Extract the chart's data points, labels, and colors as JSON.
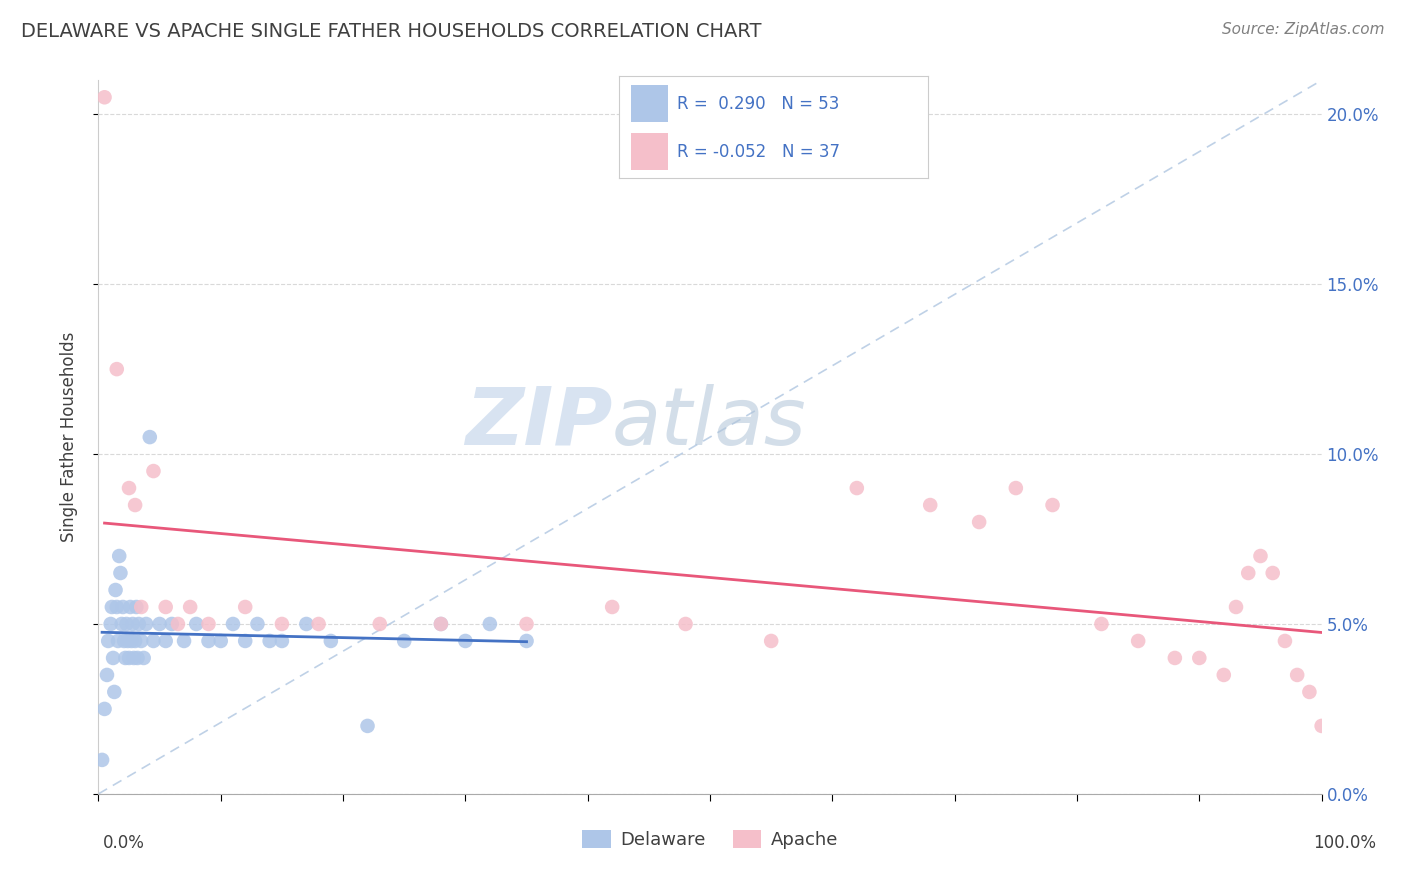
{
  "title": "DELAWARE VS APACHE SINGLE FATHER HOUSEHOLDS CORRELATION CHART",
  "source": "Source: ZipAtlas.com",
  "ylabel": "Single Father Households",
  "xlim": [
    0,
    100
  ],
  "ylim": [
    0,
    21
  ],
  "yticks": [
    0,
    5,
    10,
    15,
    20
  ],
  "ytick_labels": [
    "0.0%",
    "5.0%",
    "10.0%",
    "15.0%",
    "20.0%"
  ],
  "xtick_labels": [
    "0.0%",
    "100.0%"
  ],
  "watermark_zip": "ZIP",
  "watermark_atlas": "atlas",
  "legend_line1": "R =  0.290   N = 53",
  "legend_line2": "R = -0.052   N = 37",
  "color_delaware": "#aec6e8",
  "color_apache": "#f5bfca",
  "line_color_delaware": "#4472c4",
  "line_color_apache": "#e8577a",
  "diag_line_color": "#b8cce4",
  "background_color": "#ffffff",
  "grid_color": "#d9d9d9",
  "title_color": "#404040",
  "legend_text_color": "#4472c4",
  "source_color": "#808080",
  "ylabel_color": "#404040",
  "delaware_x": [
    0.3,
    0.5,
    0.7,
    0.8,
    1.0,
    1.1,
    1.2,
    1.3,
    1.4,
    1.5,
    1.6,
    1.7,
    1.8,
    1.9,
    2.0,
    2.1,
    2.2,
    2.3,
    2.4,
    2.5,
    2.6,
    2.7,
    2.8,
    2.9,
    3.0,
    3.1,
    3.2,
    3.3,
    3.5,
    3.7,
    3.9,
    4.2,
    4.5,
    5.0,
    5.5,
    6.0,
    7.0,
    8.0,
    9.0,
    10.0,
    11.0,
    12.0,
    13.0,
    14.0,
    15.0,
    17.0,
    19.0,
    22.0,
    25.0,
    28.0,
    30.0,
    32.0,
    35.0
  ],
  "delaware_y": [
    1.0,
    2.5,
    3.5,
    4.5,
    5.0,
    5.5,
    4.0,
    3.0,
    6.0,
    5.5,
    4.5,
    7.0,
    6.5,
    5.0,
    5.5,
    4.5,
    4.0,
    5.0,
    4.5,
    4.0,
    5.5,
    4.5,
    5.0,
    4.0,
    4.5,
    5.5,
    4.0,
    5.0,
    4.5,
    4.0,
    5.0,
    10.5,
    4.5,
    5.0,
    4.5,
    5.0,
    4.5,
    5.0,
    4.5,
    4.5,
    5.0,
    4.5,
    5.0,
    4.5,
    4.5,
    5.0,
    4.5,
    2.0,
    4.5,
    5.0,
    4.5,
    5.0,
    4.5
  ],
  "apache_x": [
    0.5,
    1.5,
    2.5,
    3.0,
    3.5,
    4.5,
    5.5,
    6.5,
    7.5,
    9.0,
    12.0,
    15.0,
    18.0,
    23.0,
    28.0,
    35.0,
    42.0,
    48.0,
    55.0,
    62.0,
    68.0,
    72.0,
    75.0,
    78.0,
    82.0,
    85.0,
    88.0,
    90.0,
    92.0,
    93.0,
    94.0,
    95.0,
    96.0,
    97.0,
    98.0,
    99.0,
    100.0
  ],
  "apache_y": [
    20.5,
    12.5,
    9.0,
    8.5,
    5.5,
    9.5,
    5.5,
    5.0,
    5.5,
    5.0,
    5.5,
    5.0,
    5.0,
    5.0,
    5.0,
    5.0,
    5.5,
    5.0,
    4.5,
    9.0,
    8.5,
    8.0,
    9.0,
    8.5,
    5.0,
    4.5,
    4.0,
    4.0,
    3.5,
    5.5,
    6.5,
    7.0,
    6.5,
    4.5,
    3.5,
    3.0,
    2.0
  ]
}
